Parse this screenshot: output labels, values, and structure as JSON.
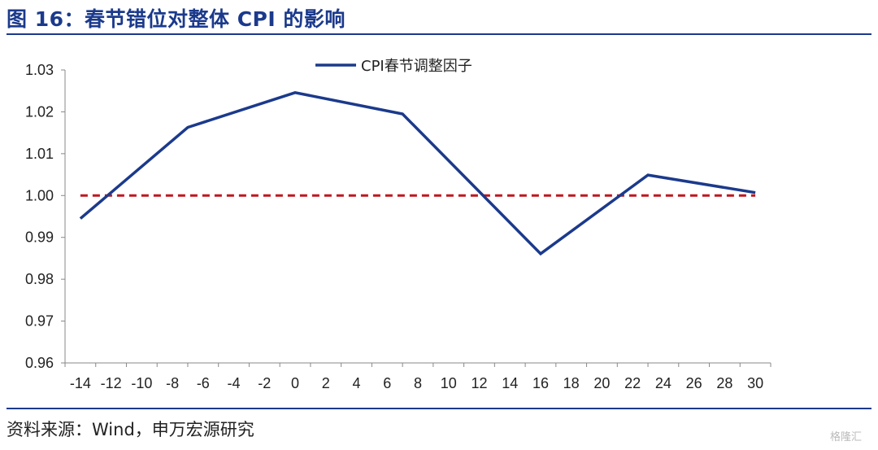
{
  "figure": {
    "title": "图 16：春节错位对整体 CPI 的影响",
    "source": "资料来源：Wind，申万宏源研究",
    "watermark": "格隆汇"
  },
  "chart_data": {
    "type": "line",
    "title": "",
    "xlabel": "",
    "ylabel": "",
    "xlim": [
      -15,
      31
    ],
    "ylim": [
      0.96,
      1.03
    ],
    "x_ticks": [
      -14,
      -12,
      -10,
      -8,
      -6,
      -4,
      -2,
      0,
      2,
      4,
      6,
      8,
      10,
      12,
      14,
      16,
      18,
      20,
      22,
      24,
      26,
      28,
      30
    ],
    "y_ticks": [
      "1.03",
      "1.02",
      "1.01",
      "1.00",
      "0.99",
      "0.98",
      "0.97",
      "0.96"
    ],
    "y_tick_values": [
      1.03,
      1.02,
      1.01,
      1.0,
      0.99,
      0.98,
      0.97,
      0.96
    ],
    "grid": false,
    "legend_position": "top-center",
    "series": [
      {
        "name": "CPI春节调整因子",
        "color": "#1b3a8c",
        "style": "solid",
        "x": [
          -14,
          -7,
          0,
          7,
          16,
          23,
          30
        ],
        "y": [
          0.9945,
          1.0163,
          1.0246,
          1.0195,
          0.9861,
          1.0049,
          1.0007
        ]
      },
      {
        "name": "",
        "color": "#c0171e",
        "style": "dashed",
        "x": [
          -14,
          30
        ],
        "y": [
          1.0,
          1.0
        ]
      }
    ]
  }
}
